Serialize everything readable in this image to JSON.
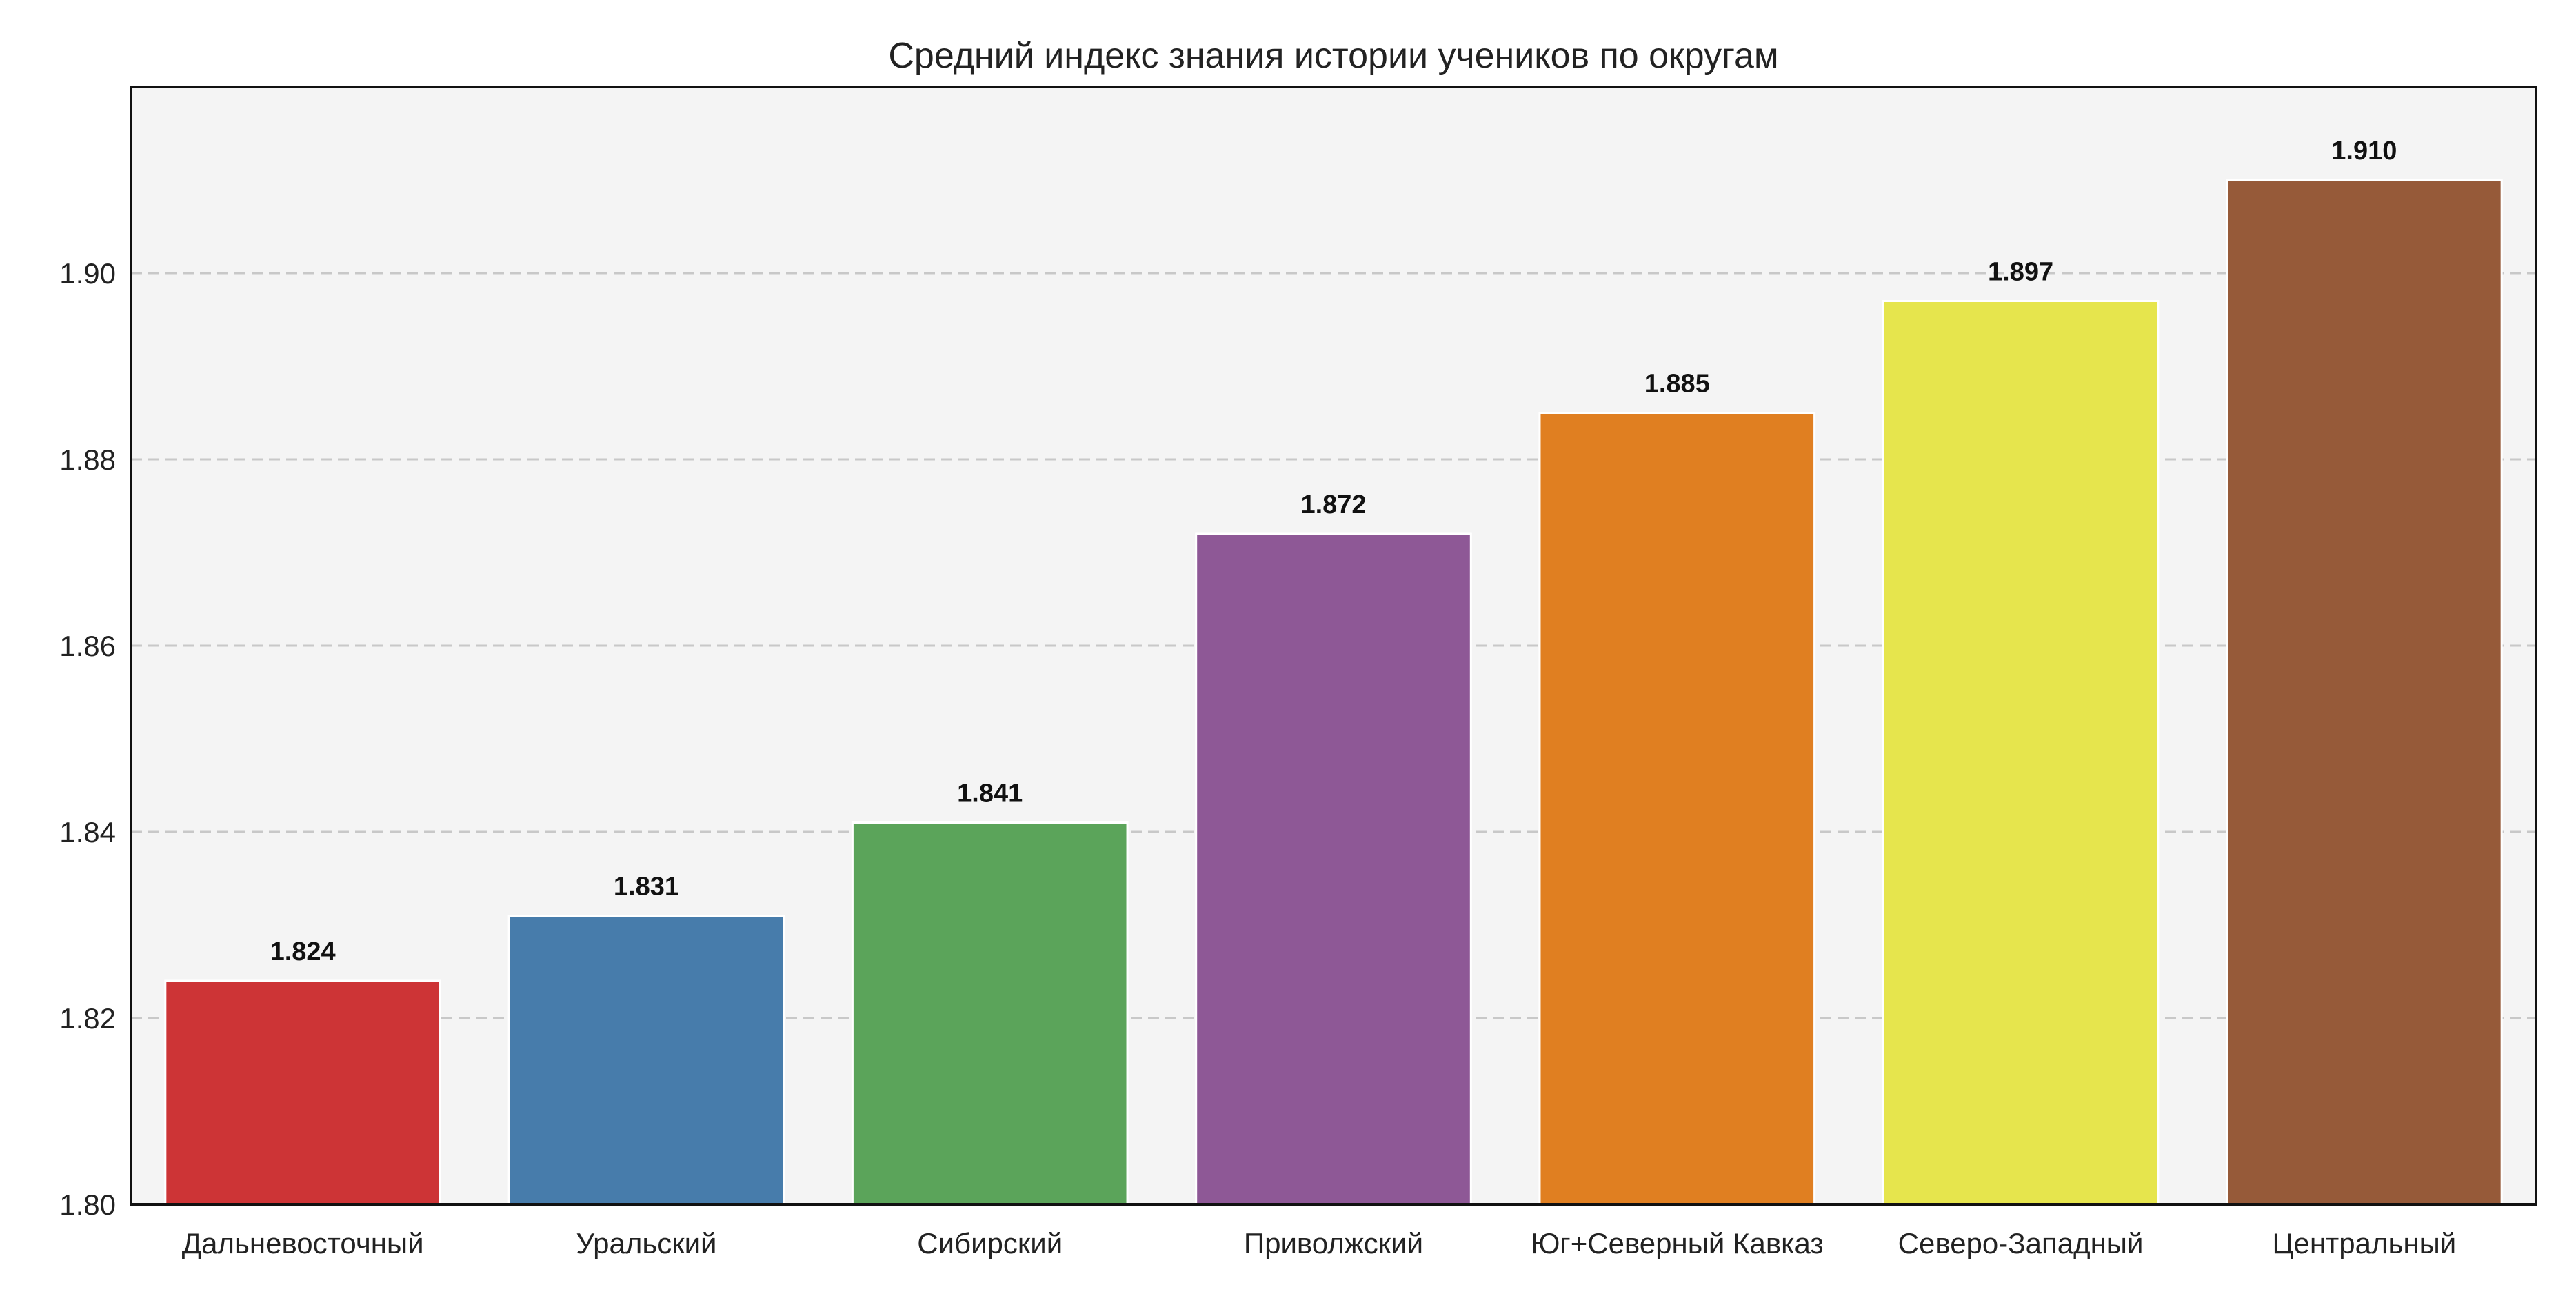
{
  "chart_data": {
    "type": "bar",
    "title": "Средний индекс знания истории учеников по округам",
    "xlabel": "",
    "ylabel": "",
    "categories": [
      "Дальневосточный",
      "Уральский",
      "Сибирский",
      "Приволжский",
      "Юг+Северный Кавказ",
      "Северо-Западный",
      "Центральный"
    ],
    "values": [
      1.824,
      1.831,
      1.841,
      1.872,
      1.885,
      1.897,
      1.91
    ],
    "value_labels": [
      "1.824",
      "1.831",
      "1.841",
      "1.872",
      "1.885",
      "1.897",
      "1.910"
    ],
    "colors": [
      "#cd3436",
      "#477cab",
      "#5ba45a",
      "#8e5896",
      "#e07f21",
      "#e6e54d",
      "#965a39"
    ],
    "ylim": [
      1.8,
      1.92
    ],
    "yticks": [
      1.8,
      1.82,
      1.84,
      1.86,
      1.88,
      1.9
    ],
    "ytick_labels": [
      "1.80",
      "1.82",
      "1.84",
      "1.86",
      "1.88",
      "1.90"
    ],
    "grid": "y-dashed",
    "legend": "none",
    "plot_background": "#f4f4f4"
  }
}
